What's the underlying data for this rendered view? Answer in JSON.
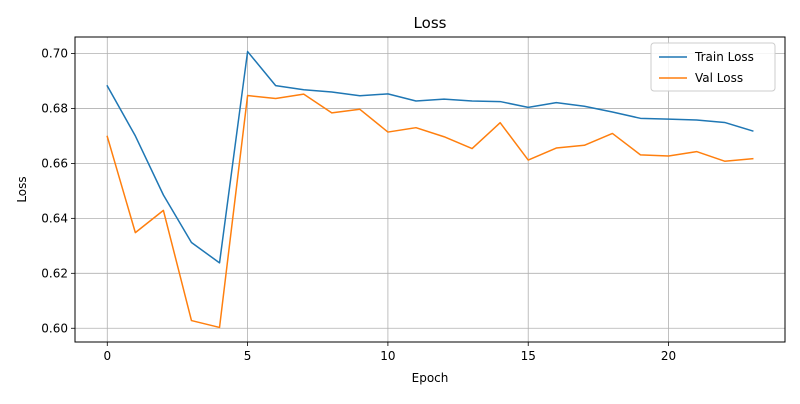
{
  "chart_data": {
    "type": "line",
    "title": "Loss",
    "xlabel": "Epoch",
    "ylabel": "Loss",
    "x": [
      0,
      1,
      2,
      3,
      4,
      5,
      6,
      7,
      8,
      9,
      10,
      11,
      12,
      13,
      14,
      15,
      16,
      17,
      18,
      19,
      20,
      21,
      22,
      23
    ],
    "series": [
      {
        "name": "Train Loss",
        "color": "#1f77b4",
        "values": [
          0.6882,
          0.67,
          0.6485,
          0.6312,
          0.6238,
          0.7007,
          0.6883,
          0.6868,
          0.686,
          0.6846,
          0.6853,
          0.6827,
          0.6834,
          0.6827,
          0.6825,
          0.6804,
          0.6821,
          0.6808,
          0.6787,
          0.6764,
          0.6761,
          0.6758,
          0.6749,
          0.6718
        ]
      },
      {
        "name": "Val Loss",
        "color": "#ff7f0e",
        "values": [
          0.6698,
          0.6348,
          0.6429,
          0.6028,
          0.6003,
          0.6847,
          0.6836,
          0.6852,
          0.6784,
          0.6797,
          0.6714,
          0.673,
          0.6697,
          0.6654,
          0.6748,
          0.6612,
          0.6656,
          0.6666,
          0.6709,
          0.6631,
          0.6627,
          0.6643,
          0.6608,
          0.6617
        ]
      }
    ],
    "xlim": [
      -1.15,
      24.15
    ],
    "ylim": [
      0.595,
      0.706
    ],
    "xticks": [
      0,
      5,
      10,
      15,
      20
    ],
    "yticks": [
      0.6,
      0.62,
      0.64,
      0.66,
      0.68,
      0.7
    ],
    "grid": true,
    "legend_position": "top-right"
  }
}
